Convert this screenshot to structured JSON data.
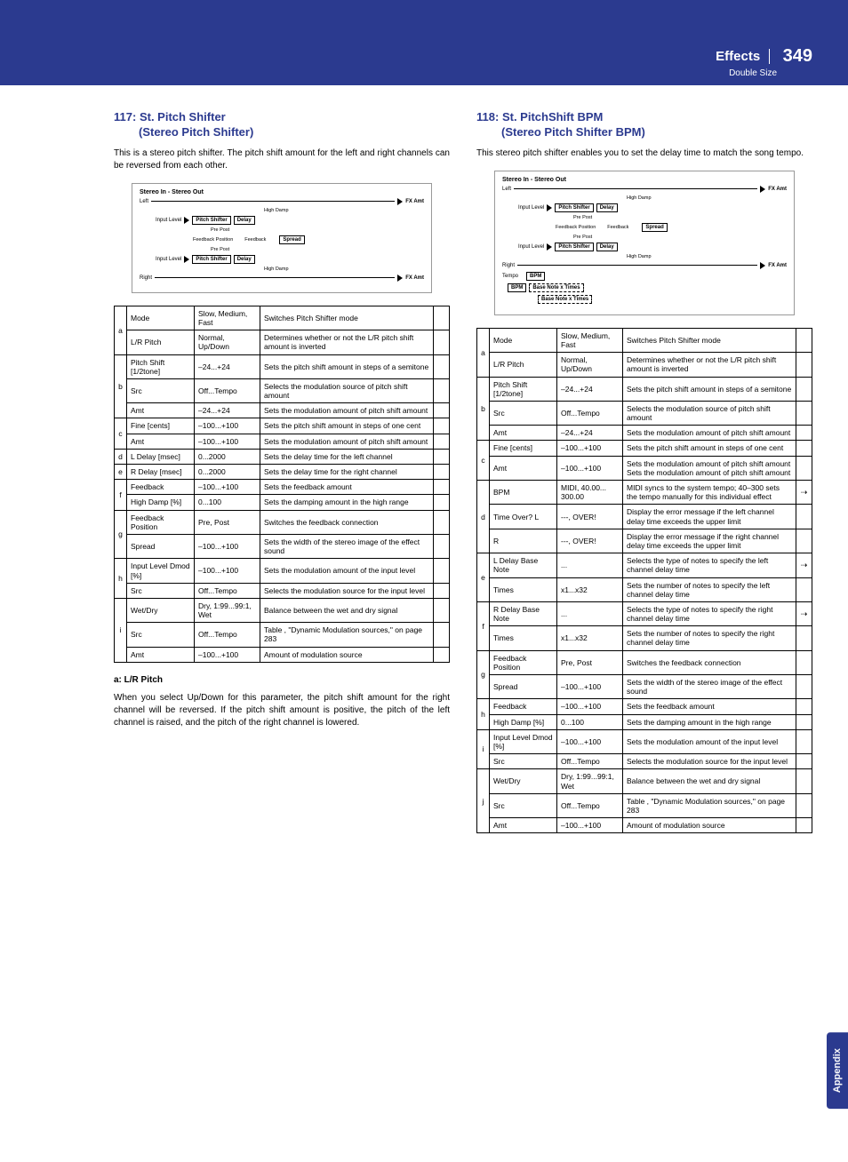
{
  "header": {
    "section": "Effects",
    "page": "349",
    "sub": "Double Size"
  },
  "sidetab": "Appendix",
  "left": {
    "title_num": "117:",
    "title_a": "St. Pitch Shifter",
    "title_b": "(Stereo Pitch Shifter)",
    "intro": "This is a stereo pitch shifter. The pitch shift amount for the left and right channels can be reversed from each other.",
    "diagram": {
      "title": "Stereo In - Stereo Out",
      "left": "Left",
      "right": "Right",
      "input": "Input Level",
      "ps": "Pitch Shifter",
      "delay": "Delay",
      "highdamp": "High Damp",
      "fb": "Feedback",
      "fbpos": "Feedback Position",
      "spread": "Spread",
      "prepost": "Pre   Post",
      "fxamt": "FX Amt"
    },
    "rows": [
      {
        "g": "a",
        "n": "Mode",
        "v": "Slow, Medium, Fast",
        "d": "Switches Pitch Shifter mode"
      },
      {
        "g": "",
        "n": "L/R Pitch",
        "v": "Normal, Up/Down",
        "d": "Determines whether or not the L/R pitch shift amount is inverted"
      },
      {
        "g": "b",
        "n": "Pitch Shift [1/2tone]",
        "v": "–24...+24",
        "d": "Sets the pitch shift amount in steps of a semitone"
      },
      {
        "g": "",
        "n": "Src",
        "v": "Off...Tempo",
        "d": "Selects the modulation source of pitch shift amount"
      },
      {
        "g": "",
        "n": "Amt",
        "v": "–24...+24",
        "d": "Sets the modulation amount of pitch shift amount"
      },
      {
        "g": "c",
        "n": "Fine [cents]",
        "v": "–100...+100",
        "d": "Sets the pitch shift amount in steps of one cent"
      },
      {
        "g": "",
        "n": "Amt",
        "v": "–100...+100",
        "d": "Sets the modulation amount of pitch shift amount"
      },
      {
        "g": "d",
        "n": "L Delay [msec]",
        "v": "0...2000",
        "d": "Sets the delay time for the left channel"
      },
      {
        "g": "e",
        "n": "R Delay [msec]",
        "v": "0...2000",
        "d": "Sets the delay time for the right channel"
      },
      {
        "g": "f",
        "n": "Feedback",
        "v": "–100...+100",
        "d": "Sets the feedback amount"
      },
      {
        "g": "",
        "n": "High Damp [%]",
        "v": "0...100",
        "d": "Sets the damping amount in the high range"
      },
      {
        "g": "g",
        "n": "Feedback Position",
        "v": "Pre, Post",
        "d": "Switches the feedback connection"
      },
      {
        "g": "",
        "n": "Spread",
        "v": "–100...+100",
        "d": "Sets the width of the stereo image of the effect sound"
      },
      {
        "g": "h",
        "n": "Input Level Dmod [%]",
        "v": "–100...+100",
        "d": "Sets the modulation amount of the input level"
      },
      {
        "g": "",
        "n": "Src",
        "v": "Off...Tempo",
        "d": "Selects the modulation source for the input level"
      },
      {
        "g": "i",
        "n": "Wet/Dry",
        "v": "Dry, 1:99...99:1, Wet",
        "d": "Balance between the wet and dry signal"
      },
      {
        "g": "",
        "n": "Src",
        "v": "Off...Tempo",
        "d": "Table , \"Dynamic Modulation sources,\" on page 283"
      },
      {
        "g": "",
        "n": "Amt",
        "v": "–100...+100",
        "d": "Amount of modulation source"
      }
    ],
    "subhead": "a: L/R Pitch",
    "subtext": "When you select Up/Down for this parameter, the pitch shift amount for the right channel will be reversed. If the pitch shift amount is positive, the pitch of the left channel is raised, and the pitch of the right channel is lowered."
  },
  "right": {
    "title_num": "118:",
    "title_a": "St. PitchShift BPM",
    "title_b": "(Stereo Pitch Shifter BPM)",
    "intro": "This stereo pitch shifter enables you to set the delay time to match the song tempo.",
    "diagram": {
      "title": "Stereo In - Stereo Out",
      "left": "Left",
      "right": "Right",
      "input": "Input Level",
      "ps": "Pitch Shifter",
      "delay": "Delay",
      "highdamp": "High Damp",
      "fb": "Feedback",
      "fbpos": "Feedback Position",
      "spread": "Spread",
      "prepost": "Pre   Post",
      "fxamt": "FX Amt",
      "tempo": "Tempo",
      "bpm": "BPM",
      "bnt": "Base Note x Times"
    },
    "rows": [
      {
        "g": "a",
        "n": "Mode",
        "v": "Slow, Medium, Fast",
        "d": "Switches Pitch Shifter mode",
        "l": ""
      },
      {
        "g": "",
        "n": "L/R Pitch",
        "v": "Normal, Up/Down",
        "d": "Determines whether or not the L/R pitch shift amount is inverted",
        "l": ""
      },
      {
        "g": "b",
        "n": "Pitch Shift [1/2tone]",
        "v": "–24...+24",
        "d": "Sets the pitch shift amount in steps of a semitone",
        "l": ""
      },
      {
        "g": "",
        "n": "Src",
        "v": "Off...Tempo",
        "d": "Selects the modulation source of pitch shift amount",
        "l": ""
      },
      {
        "g": "",
        "n": "Amt",
        "v": "–24...+24",
        "d": "Sets the modulation amount of pitch shift amount",
        "l": ""
      },
      {
        "g": "c",
        "n": "Fine [cents]",
        "v": "–100...+100",
        "d": "Sets the pitch shift amount in steps of one cent",
        "l": ""
      },
      {
        "g": "",
        "n": "Amt",
        "v": "–100...+100",
        "d": "Sets the modulation amount of pitch shift amount Sets the modulation amount of pitch shift amount",
        "l": ""
      },
      {
        "g": "d",
        "n": "BPM",
        "v": "MIDI, 40.00... 300.00",
        "d": "MIDI syncs to the system tempo; 40–300 sets the tempo manually for this individual effect",
        "l": "⇢"
      },
      {
        "g": "",
        "n": "Time Over? L",
        "v": "---, OVER!",
        "d": "Display the error message if the left channel delay time exceeds the upper limit",
        "l": ""
      },
      {
        "g": "",
        "n": "R",
        "v": "---, OVER!",
        "d": "Display the error message if the right channel delay time exceeds the upper limit",
        "l": ""
      },
      {
        "g": "e",
        "n": "L Delay Base Note",
        "v": "... ",
        "d": "Selects the type of notes to specify the left channel delay time",
        "l": "⇢"
      },
      {
        "g": "",
        "n": "Times",
        "v": "x1...x32",
        "d": "Sets the number of notes to specify the left channel delay time",
        "l": ""
      },
      {
        "g": "f",
        "n": "R Delay Base Note",
        "v": "... ",
        "d": "Selects the type of notes to specify the right channel delay time",
        "l": "⇢"
      },
      {
        "g": "",
        "n": "Times",
        "v": "x1...x32",
        "d": "Sets the number of notes to specify the right channel delay time",
        "l": ""
      },
      {
        "g": "g",
        "n": "Feedback Position",
        "v": "Pre, Post",
        "d": "Switches the feedback connection",
        "l": ""
      },
      {
        "g": "",
        "n": "Spread",
        "v": "–100...+100",
        "d": "Sets the width of the stereo image of the effect sound",
        "l": ""
      },
      {
        "g": "h",
        "n": "Feedback",
        "v": "–100...+100",
        "d": "Sets the feedback amount",
        "l": ""
      },
      {
        "g": "",
        "n": "High Damp [%]",
        "v": "0...100",
        "d": "Sets the damping amount in the high range",
        "l": ""
      },
      {
        "g": "i",
        "n": "Input Level Dmod [%]",
        "v": "–100...+100",
        "d": "Sets the modulation amount of the input level",
        "l": ""
      },
      {
        "g": "",
        "n": "Src",
        "v": "Off...Tempo",
        "d": "Selects the modulation source for the input level",
        "l": ""
      },
      {
        "g": "j",
        "n": "Wet/Dry",
        "v": "Dry, 1:99...99:1, Wet",
        "d": "Balance between the wet and dry signal",
        "l": ""
      },
      {
        "g": "",
        "n": "Src",
        "v": "Off...Tempo",
        "d": "Table , \"Dynamic Modulation sources,\" on page 283",
        "l": ""
      },
      {
        "g": "",
        "n": "Amt",
        "v": "–100...+100",
        "d": "Amount of modulation source",
        "l": ""
      }
    ]
  }
}
